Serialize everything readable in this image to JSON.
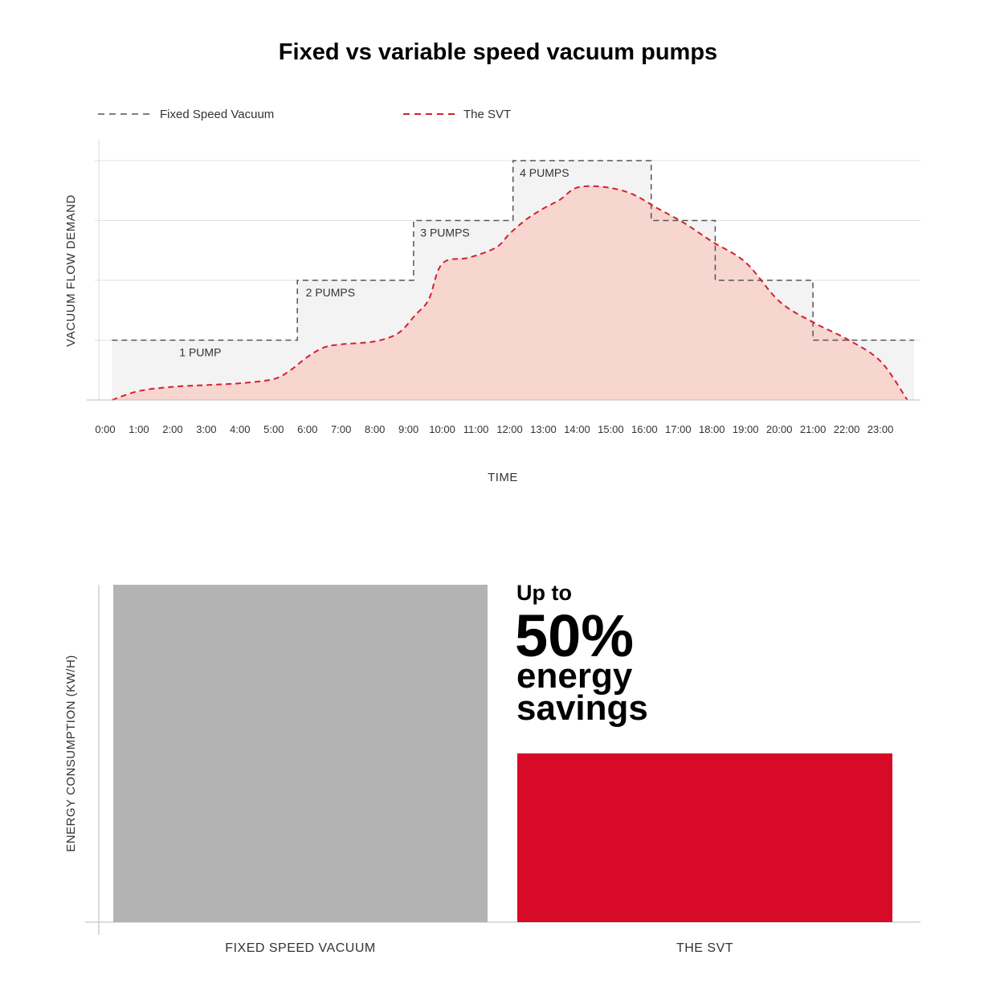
{
  "title": "Fixed vs variable speed vacuum pumps",
  "colors": {
    "fixed_line": "#555555",
    "svt_line": "#d42030",
    "svt_fill": "#f7d6cf",
    "fixed_fill": "#f3f3f3",
    "grid": "#e2e2e2",
    "fixed_bar": "#b3b3b3",
    "svt_bar": "#d70a27"
  },
  "chart_data": [
    {
      "type": "line",
      "legend": {
        "placement": "top-left",
        "entries": [
          "Fixed Speed Vacuum",
          "The SVT"
        ]
      },
      "xlabel": "TIME",
      "ylabel": "VACUUM FLOW DEMAND",
      "x_ticks": [
        "0:00",
        "1:00",
        "2:00",
        "3:00",
        "4:00",
        "5:00",
        "6:00",
        "7:00",
        "8:00",
        "9:00",
        "10:00",
        "11:00",
        "12:00",
        "13:00",
        "14:00",
        "15:00",
        "16:00",
        "17:00",
        "18:00",
        "19:00",
        "20:00",
        "21:00",
        "22:00",
        "23:00"
      ],
      "xlim": [
        0,
        24
      ],
      "ylim": [
        0,
        4
      ],
      "grid": "horizontal",
      "series": [
        {
          "name": "Fixed Speed Vacuum",
          "style": "dashed-step",
          "steps": [
            {
              "from": 0.2,
              "to": 5.7,
              "value": 1
            },
            {
              "from": 5.7,
              "to": 9.15,
              "value": 2
            },
            {
              "from": 9.15,
              "to": 12.1,
              "value": 3
            },
            {
              "from": 12.1,
              "to": 16.2,
              "value": 4
            },
            {
              "from": 16.2,
              "to": 18.1,
              "value": 3
            },
            {
              "from": 18.1,
              "to": 21.0,
              "value": 2
            },
            {
              "from": 21.0,
              "to": 24.0,
              "value": 1
            }
          ]
        },
        {
          "name": "The SVT",
          "style": "dashed-filled",
          "x": [
            0.2,
            1.0,
            2.0,
            3.0,
            4.0,
            5.0,
            5.5,
            6.0,
            6.5,
            7.0,
            8.0,
            8.7,
            9.2,
            9.6,
            10.0,
            10.8,
            11.6,
            12.0,
            12.5,
            13.0,
            13.5,
            14.0,
            14.8,
            15.6,
            16.4,
            17.2,
            18.0,
            19.0,
            20.0,
            21.0,
            22.0,
            23.0,
            23.8
          ],
          "y": [
            0.0,
            0.15,
            0.22,
            0.25,
            0.28,
            0.35,
            0.5,
            0.72,
            0.88,
            0.93,
            0.98,
            1.12,
            1.42,
            1.68,
            2.28,
            2.38,
            2.55,
            2.78,
            3.02,
            3.2,
            3.35,
            3.55,
            3.56,
            3.45,
            3.2,
            2.95,
            2.65,
            2.3,
            1.65,
            1.3,
            1.02,
            0.65,
            0.0
          ]
        }
      ],
      "annotations": [
        {
          "text": "1 PUMP",
          "x": 2.2,
          "y": 0.8
        },
        {
          "text": "2 PUMPS",
          "x": 5.95,
          "y": 1.8
        },
        {
          "text": "3 PUMPS",
          "x": 9.35,
          "y": 2.8
        },
        {
          "text": "4 PUMPS",
          "x": 12.3,
          "y": 3.8
        }
      ]
    },
    {
      "type": "bar",
      "categories": [
        "FIXED SPEED VACUUM",
        "THE SVT"
      ],
      "values": [
        100,
        50
      ],
      "ylabel": "ENERGY CONSUMPTION (KW/H)",
      "ylim": [
        0,
        100
      ],
      "annotation_lines": [
        "Up to",
        "50%",
        "energy",
        "savings"
      ]
    }
  ]
}
